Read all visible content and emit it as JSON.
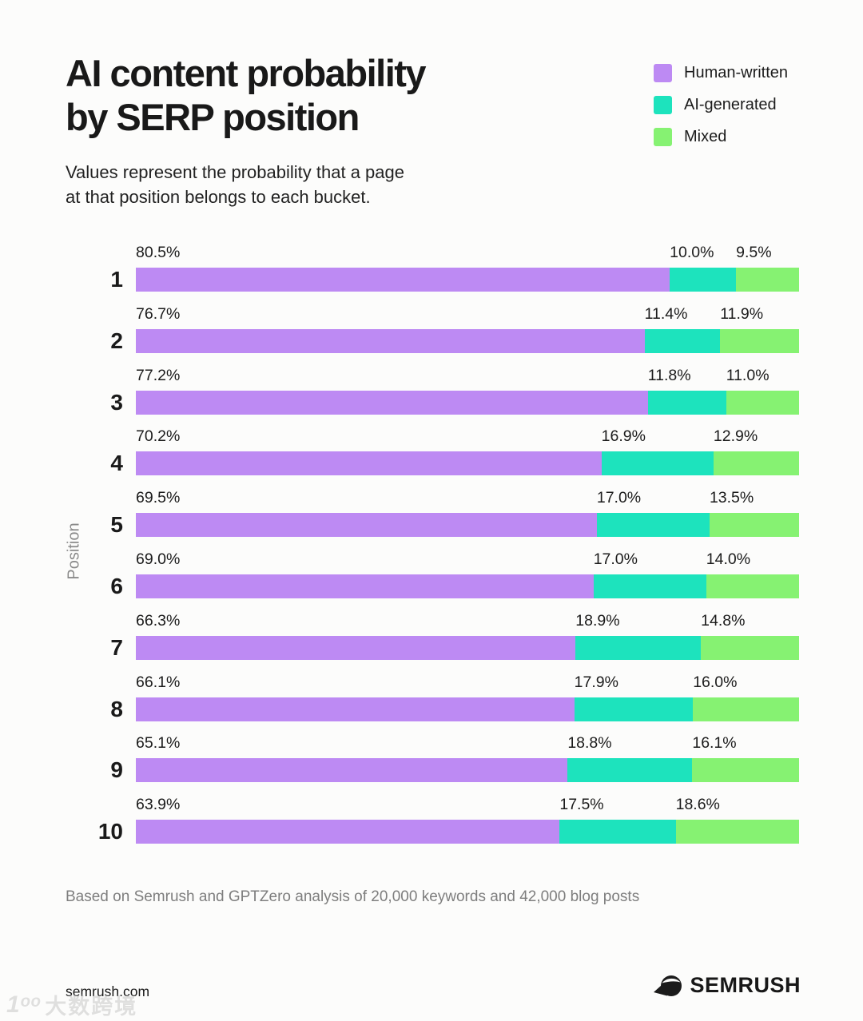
{
  "header": {
    "title_line1": "AI content probability",
    "title_line2": "by SERP position",
    "subtitle_line1": "Values represent the probability that a page",
    "subtitle_line2": "at that position belongs to each bucket."
  },
  "chart_data": {
    "type": "bar",
    "orientation": "horizontal",
    "stacked": true,
    "title": "AI content probability by SERP position",
    "subtitle": "Values represent the probability that a page at that position belongs to each bucket.",
    "ylabel": "Position",
    "categories": [
      "1",
      "2",
      "3",
      "4",
      "5",
      "6",
      "7",
      "8",
      "9",
      "10"
    ],
    "series": [
      {
        "name": "Human-written",
        "color": "#bd8af3",
        "values": [
          80.5,
          76.7,
          77.2,
          70.2,
          69.5,
          69.0,
          66.3,
          66.1,
          65.1,
          63.9
        ]
      },
      {
        "name": "AI-generated",
        "color": "#1de3bd",
        "values": [
          10.0,
          11.4,
          11.8,
          16.9,
          17.0,
          17.0,
          18.9,
          17.9,
          18.8,
          17.5
        ]
      },
      {
        "name": "Mixed",
        "color": "#86f272",
        "values": [
          9.5,
          11.9,
          11.0,
          12.9,
          13.5,
          14.0,
          14.8,
          16.0,
          16.1,
          18.6
        ]
      }
    ],
    "value_suffix": "%",
    "xlim": [
      0,
      100
    ],
    "grid": false,
    "legend_position": "top-right",
    "value_labels": "above-segment-start"
  },
  "footer": {
    "note": "Based on Semrush and GPTZero analysis of 20,000 keywords and 42,000 blog posts",
    "site": "semrush.com",
    "brand": "SEMRUSH"
  },
  "watermark": {
    "logo": "1ᵒᵒ",
    "text": "大数跨境"
  }
}
